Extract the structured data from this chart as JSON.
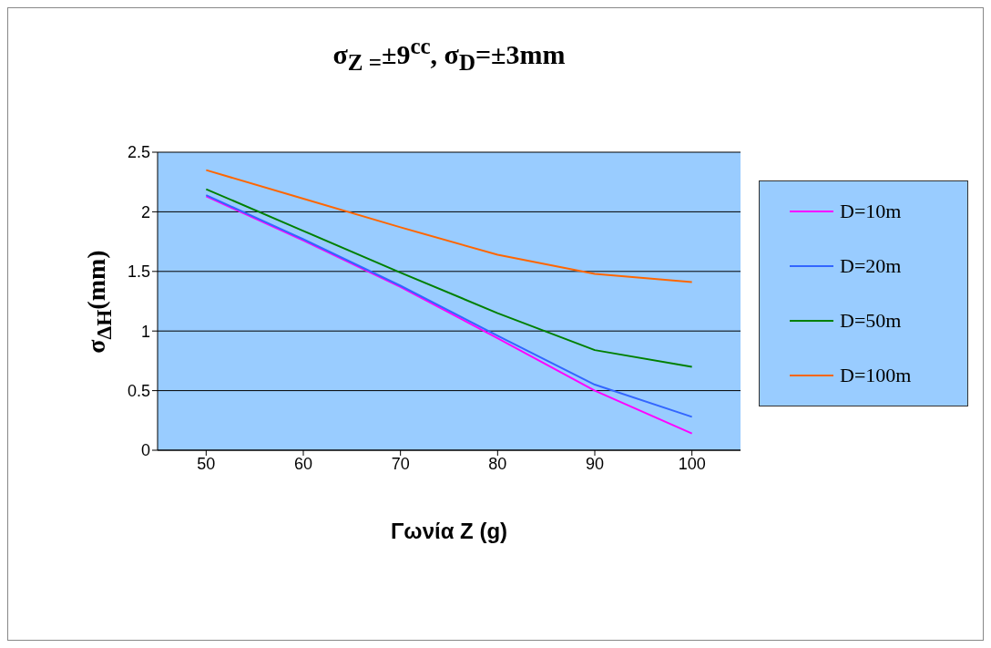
{
  "chart_data": {
    "type": "line",
    "title": "σ$_{Z =}$±9$^{cc}$, σ$_{D}$=±3mm",
    "xlabel": "Γωνία Z (g)",
    "ylabel": "σ$_{ΔH}$(mm)",
    "categories": [
      "50",
      "60",
      "70",
      "80",
      "90",
      "100"
    ],
    "series": [
      {
        "name": "D=10m",
        "color": "#ff00ff",
        "values": [
          2.13,
          1.76,
          1.37,
          0.94,
          0.5,
          0.14
        ]
      },
      {
        "name": "D=20m",
        "color": "#3366ff",
        "values": [
          2.14,
          1.77,
          1.38,
          0.96,
          0.55,
          0.28
        ]
      },
      {
        "name": "D=50m",
        "color": "#008000",
        "values": [
          2.19,
          1.84,
          1.49,
          1.15,
          0.84,
          0.7
        ]
      },
      {
        "name": "D=100m",
        "color": "#ff6600",
        "values": [
          2.35,
          2.11,
          1.87,
          1.64,
          1.48,
          1.41
        ]
      }
    ],
    "ylim": [
      0,
      2.5
    ],
    "yticks": [
      0,
      0.5,
      1,
      1.5,
      2,
      2.5
    ],
    "grid": "y",
    "legend": "right",
    "marker": "none",
    "line_style": "solid"
  }
}
